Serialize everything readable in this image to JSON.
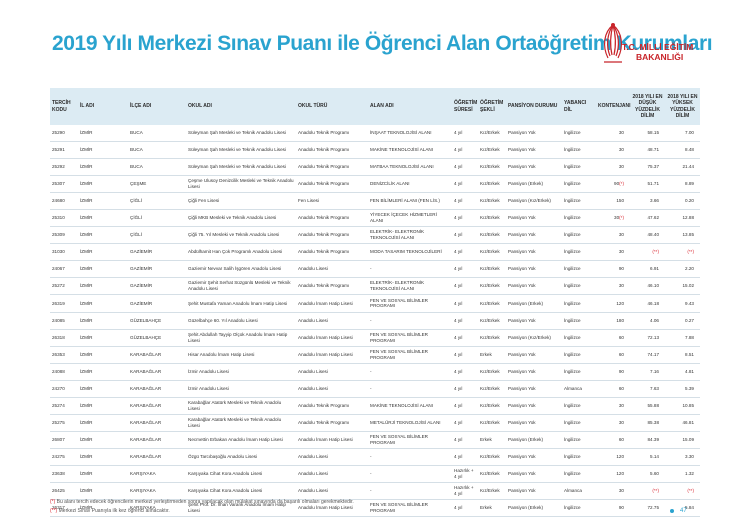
{
  "title": "2019 Yılı Merkezi Sınav Puanı ile Öğrenci Alan Ortaöğretim Kurumları",
  "logo": {
    "line1": "T.C. MİLLİ EĞİTİM",
    "line2": "BAKANLIĞI"
  },
  "headers": {
    "kod": "TERCİH KODU",
    "il": "İL ADI",
    "ilce": "İLÇE ADI",
    "okul": "OKUL ADI",
    "tur": "OKUL TÜRÜ",
    "alan": "ALAN ADI",
    "sure": "ÖĞRETİM SÜRESİ",
    "sekil": "ÖĞRETİM ŞEKLİ",
    "pansiyon": "PANSİYON DURUMU",
    "dil": "YABANCI DİL",
    "kont": "KONTENJANI",
    "enDusuk": "2018 YILI EN DÜŞÜK YÜZDELİK DİLİM",
    "enYuksek": "2018 YILI EN YÜKSEK YÜZDELİK DİLİM"
  },
  "rows": [
    [
      "25290",
      "İZMİR",
      "BUCA",
      "Süleyman Şah Mesleki ve Teknik Anadolu Lisesi",
      "Anadolu Teknik Programı",
      "İNŞAAT TEKNOLOJİSİ ALANI",
      "4 yıl",
      "Kız/Erkek",
      "Pansiyon Yok",
      "İngilizce",
      "30",
      "58.15",
      "7.00"
    ],
    [
      "25291",
      "İZMİR",
      "BUCA",
      "Süleyman Şah Mesleki ve Teknik Anadolu Lisesi",
      "Anadolu Teknik Programı",
      "MAKİNE TEKNOLOJİSİ ALANI",
      "4 yıl",
      "Kız/Erkek",
      "Pansiyon Yok",
      "İngilizce",
      "30",
      "48.71",
      "8.48"
    ],
    [
      "25292",
      "İZMİR",
      "BUCA",
      "Süleyman Şah Mesleki ve Teknik Anadolu Lisesi",
      "Anadolu Teknik Programı",
      "MATBAA TEKNOLOJİSİ ALANI",
      "4 yıl",
      "Kız/Erkek",
      "Pansiyon Yok",
      "İngilizce",
      "30",
      "75.37",
      "21.44"
    ],
    [
      "25307",
      "İZMİR",
      "ÇEŞME",
      "Çeşme Ulusoy Denizcilik Mesleki ve Teknik Anadolu Lisesi",
      "Anadolu Teknik Programı",
      "DENİZCİLİK ALANI",
      "4 yıl",
      "Kız/Erkek",
      "Pansiyon (Erkek)",
      "İngilizce",
      "90(*)",
      "51.71",
      "8.89"
    ],
    [
      "24680",
      "İZMİR",
      "ÇİĞLİ",
      "Çiğli Fen Lisesi",
      "Fen Lisesi",
      "FEN BİLİMLERİ ALANI (FEN LİS.)",
      "4 yıl",
      "Kız/Erkek",
      "Pansiyon (Kız/Erkek)",
      "İngilizce",
      "150",
      "3.66",
      "0.20"
    ],
    [
      "25310",
      "İZMİR",
      "ÇİĞLİ",
      "Çiğli MKB Mesleki ve Teknik Anadolu Lisesi",
      "Anadolu Teknik Programı",
      "YİYECEK İÇECEK HİZMETLERİ ALANI",
      "4 yıl",
      "Kız/Erkek",
      "Pansiyon Yok",
      "İngilizce",
      "30(*)",
      "47.62",
      "12.88"
    ],
    [
      "25309",
      "İZMİR",
      "ÇİĞLİ",
      "Çiğli 75. Yıl Mesleki ve Teknik Anadolu Lisesi",
      "Anadolu Teknik Programı",
      "ELEKTRİK- ELEKTRONİK TEKNOLOJİSİ ALANI",
      "4 yıl",
      "Kız/Erkek",
      "Pansiyon Yok",
      "İngilizce",
      "30",
      "48.40",
      "13.85"
    ],
    [
      "31030",
      "İZMİR",
      "GAZİEMİR",
      "Abdülhamit Han Çok Programlı Anadolu Lisesi",
      "Anadolu Teknik Programı",
      "MODA TASARIM TEKNOLOJİLERİ",
      "4 yıl",
      "Kız/Erkek",
      "Pansiyon Yok",
      "İngilizce",
      "30",
      "(**)",
      "(**)"
    ],
    [
      "24067",
      "İZMİR",
      "GAZİEMİR",
      "Gaziemir Nevvar Salih İşgören Anadolu Lisesi",
      "Anadolu Lisesi",
      "-",
      "4 yıl",
      "Kız/Erkek",
      "Pansiyon Yok",
      "İngilizce",
      "90",
      "6.91",
      "2.20"
    ],
    [
      "25272",
      "İZMİR",
      "GAZİEMİR",
      "Gaziemir Şehit Serhat Süzgünlü Mesleki ve Teknik Anadolu Lisesi",
      "Anadolu Teknik Programı",
      "ELEKTRİK- ELEKTRONİK TEKNOLOJİSİ ALANI",
      "4 yıl",
      "Kız/Erkek",
      "Pansiyon Yok",
      "İngilizce",
      "30",
      "46.10",
      "15.02"
    ],
    [
      "26319",
      "İZMİR",
      "GAZİEMİR",
      "Şehit Mustafa Yaman Anadolu İmam Hatip Lisesi",
      "Anadolu İmam Hatip Lisesi",
      "FEN VE SOSYAL BİLİMLER PROGRAMI",
      "4 yıl",
      "Kız/Erkek",
      "Pansiyon (Erkek)",
      "İngilizce",
      "120",
      "46.18",
      "9.43"
    ],
    [
      "24085",
      "İZMİR",
      "GÜZELBAHÇE",
      "Güzelbahçe 60. Yıl Anadolu Lisesi",
      "Anadolu Lisesi",
      "-",
      "4 yıl",
      "Kız/Erkek",
      "Pansiyon Yok",
      "İngilizce",
      "180",
      "4.06",
      "0.27"
    ],
    [
      "26318",
      "İZMİR",
      "GÜZELBAHÇE",
      "Şehit Abdullah Tayyip Olçok Anadolu İmam Hatip Lisesi",
      "Anadolu İmam Hatip Lisesi",
      "FEN VE SOSYAL BİLİMLER PROGRAMI",
      "4 yıl",
      "Kız/Erkek",
      "Pansiyon (Kız/Erkek)",
      "İngilizce",
      "60",
      "72.13",
      "7.88"
    ],
    [
      "26353",
      "İZMİR",
      "KARABAĞLAR",
      "Hisar Anadolu İmam Hatip Lisesi",
      "Anadolu İmam Hatip Lisesi",
      "FEN VE SOSYAL BİLİMLER PROGRAMI",
      "4 yıl",
      "Erkek",
      "Pansiyon Yok",
      "İngilizce",
      "60",
      "74.17",
      "8.51"
    ],
    [
      "24088",
      "İZMİR",
      "KARABAĞLAR",
      "İzmir Anadolu Lisesi",
      "Anadolu Lisesi",
      "-",
      "4 yıl",
      "Kız/Erkek",
      "Pansiyon Yok",
      "İngilizce",
      "90",
      "7.16",
      "4.81"
    ],
    [
      "24270",
      "İZMİR",
      "KARABAĞLAR",
      "İzmir Anadolu Lisesi",
      "Anadolu Lisesi",
      "-",
      "4 yıl",
      "Kız/Erkek",
      "Pansiyon Yok",
      "Almanca",
      "60",
      "7.63",
      "5.39"
    ],
    [
      "25274",
      "İZMİR",
      "KARABAĞLAR",
      "Karabağlar Atatürk Mesleki ve Teknik Anadolu Lisesi",
      "Anadolu Teknik Programı",
      "MAKİNE TEKNOLOJİSİ ALANI",
      "4 yıl",
      "Kız/Erkek",
      "Pansiyon Yok",
      "İngilizce",
      "30",
      "55.88",
      "10.85"
    ],
    [
      "25275",
      "İZMİR",
      "KARABAĞLAR",
      "Karabağlar Atatürk Mesleki ve Teknik Anadolu Lisesi",
      "Anadolu Teknik Programı",
      "METALÜRJİ TEKNOLOJİSİ ALANI",
      "4 yıl",
      "Kız/Erkek",
      "Pansiyon Yok",
      "İngilizce",
      "30",
      "85.38",
      "46.81"
    ],
    [
      "26807",
      "İZMİR",
      "KARABAĞLAR",
      "Necmettin Erbakan Anadolu İmam Hatip Lisesi",
      "Anadolu İmam Hatip Lisesi",
      "FEN VE SOSYAL BİLİMLER PROGRAMI",
      "4 yıl",
      "Erkek",
      "Pansiyon (Erkek)",
      "İngilizce",
      "60",
      "84.39",
      "15.09"
    ],
    [
      "24275",
      "İZMİR",
      "KARABAĞLAR",
      "Özgü Tarcıbaşoğlu Anadolu Lisesi",
      "Anadolu Lisesi",
      "-",
      "4 yıl",
      "Kız/Erkek",
      "Pansiyon Yok",
      "İngilizce",
      "120",
      "5.14",
      "3.30"
    ],
    [
      "23638",
      "İZMİR",
      "KARŞIYAKA",
      "Karşıyaka Cihat Kora Anadolu Lisesi",
      "Anadolu Lisesi",
      "-",
      "Hazırlık + 4 yıl",
      "Kız/Erkek",
      "Pansiyon Yok",
      "İngilizce",
      "120",
      "5.60",
      "1.32"
    ],
    [
      "26425",
      "İZMİR",
      "KARŞIYAKA",
      "Karşıyaka Cihat Kora Anadolu Lisesi",
      "Anadolu Lisesi",
      "-",
      "Hazırlık + 4 yıl",
      "Kız/Erkek",
      "Pansiyon Yok",
      "Almanca",
      "30",
      "(**)",
      "(**)"
    ],
    [
      "26317",
      "İZMİR",
      "KARŞIYAKA",
      "Şehit Prof. Dr. İlhan Varank Anadolu İmam Hatip Lisesi",
      "Anadolu İmam Hatip Lisesi",
      "FEN VE SOSYAL BİLİMLER PROGRAMI",
      "4 yıl",
      "Erkek",
      "Pansiyon (Erkek)",
      "İngilizce",
      "90",
      "72.75",
      "5.84"
    ]
  ],
  "notes": {
    "n1_mark": "(*)",
    "n1": "Bu alanı tercih edecek öğrencilerin merkezi yerleştirmeden sonra yapılacak olan mülakat sınavında da başarılı olmaları gerekmektedir.",
    "n2_mark": "(**)",
    "n2": "Merkezi Sınav Puanıyla ilk kez öğrenci alınacaktır."
  },
  "page_number": "47",
  "colors": {
    "title": "#2aa3cf",
    "logo": "#c8242a",
    "header_bg": "#dcebf3",
    "note_mark": "#d9232d"
  }
}
